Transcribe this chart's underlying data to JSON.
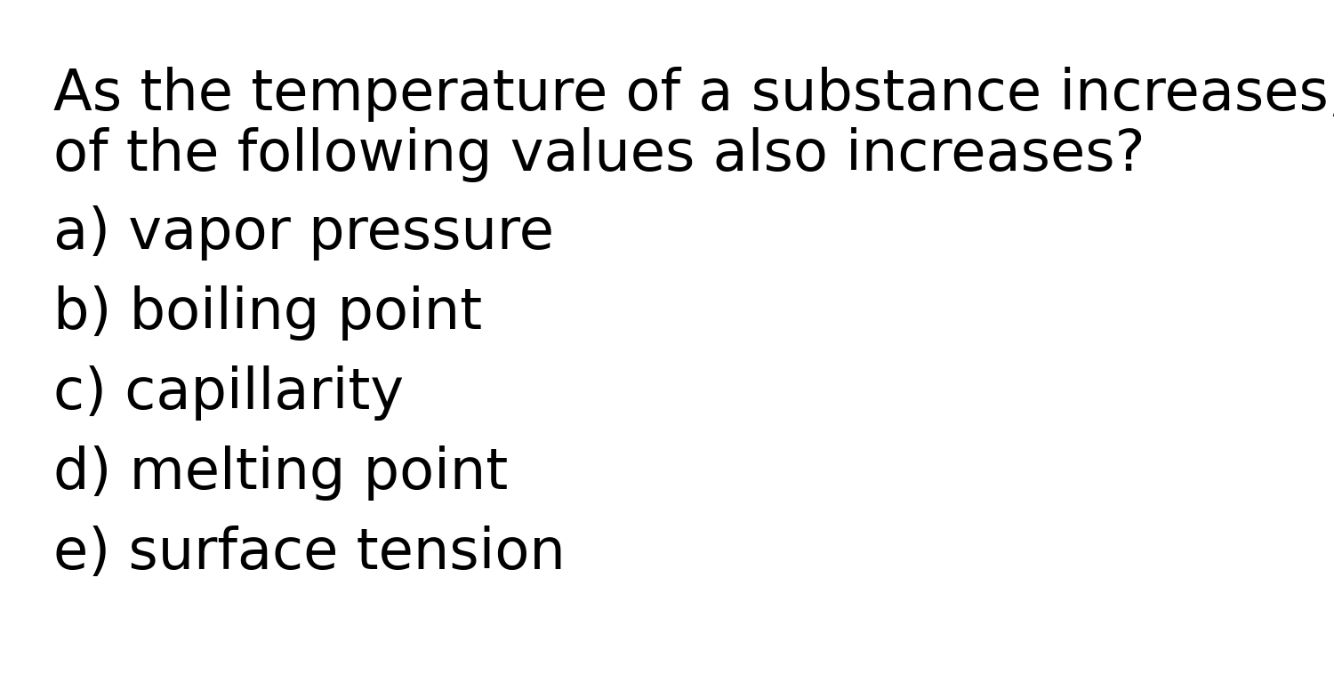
{
  "background_color": "#ffffff",
  "text_color": "#000000",
  "question_line1": "As the temperature of a substance increases, which",
  "question_line2": "of the following values also increases?",
  "options": [
    "a) vapor pressure",
    "b) boiling point",
    "c) capillarity",
    "d) melting point",
    "e) surface tension"
  ],
  "question_fontsize": 46,
  "option_fontsize": 46,
  "font_family": "DejaVu Sans",
  "fig_width": 15.0,
  "fig_height": 7.76,
  "dpi": 100
}
